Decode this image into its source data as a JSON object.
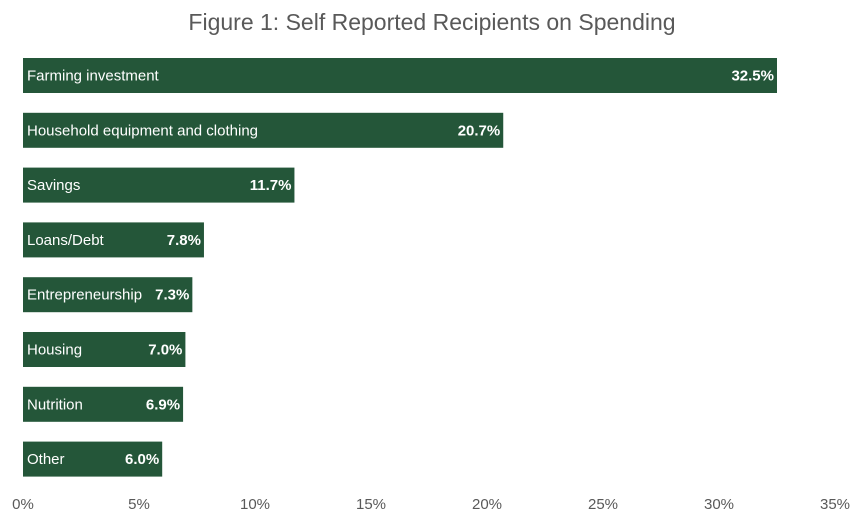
{
  "chart_data": {
    "type": "bar",
    "orientation": "horizontal",
    "title": "Figure 1: Self Reported Recipients on Spending",
    "categories": [
      "Farming investment",
      "Household equipment and clothing",
      "Savings",
      "Loans/Debt",
      "Entrepreneurship",
      "Housing",
      "Nutrition",
      "Other"
    ],
    "values": [
      32.5,
      20.7,
      11.7,
      7.8,
      7.3,
      7.0,
      6.9,
      6.0
    ],
    "value_labels": [
      "32.5%",
      "20.7%",
      "11.7%",
      "7.8%",
      "7.3%",
      "7.0%",
      "6.9%",
      "6.0%"
    ],
    "xlim": [
      0,
      35
    ],
    "xticks": [
      0,
      5,
      10,
      15,
      20,
      25,
      30,
      35
    ],
    "xtick_labels": [
      "0%",
      "5%",
      "10%",
      "15%",
      "20%",
      "25%",
      "30%",
      "35%"
    ],
    "xlabel": "",
    "ylabel": "",
    "grid": false,
    "bar_color": "#245639",
    "label_color": "#ffffff",
    "tick_color": "#595959"
  }
}
